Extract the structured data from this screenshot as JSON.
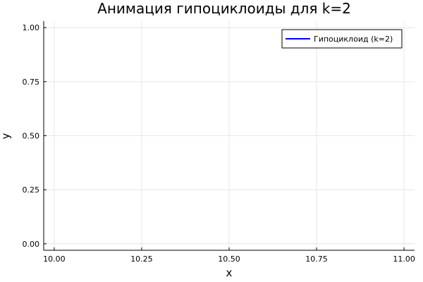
{
  "chart_data": {
    "type": "line",
    "title": "Анимация гипоциклоиды для k=2",
    "xlabel": "x",
    "ylabel": "y",
    "xlim": [
      9.97,
      11.03
    ],
    "ylim": [
      -0.03,
      1.03
    ],
    "xticks": [
      10.0,
      10.25,
      10.5,
      10.75,
      11.0
    ],
    "xtick_labels": [
      "10.00",
      "10.25",
      "10.50",
      "10.75",
      "11.00"
    ],
    "yticks": [
      0.0,
      0.25,
      0.5,
      0.75,
      1.0
    ],
    "ytick_labels": [
      "0.00",
      "0.25",
      "0.50",
      "0.75",
      "1.00"
    ],
    "grid": true,
    "legend_position": "top-right",
    "series": [
      {
        "name": "Гипоциклоид (k=2)",
        "color": "#0000ff",
        "x": [],
        "y": []
      }
    ]
  }
}
